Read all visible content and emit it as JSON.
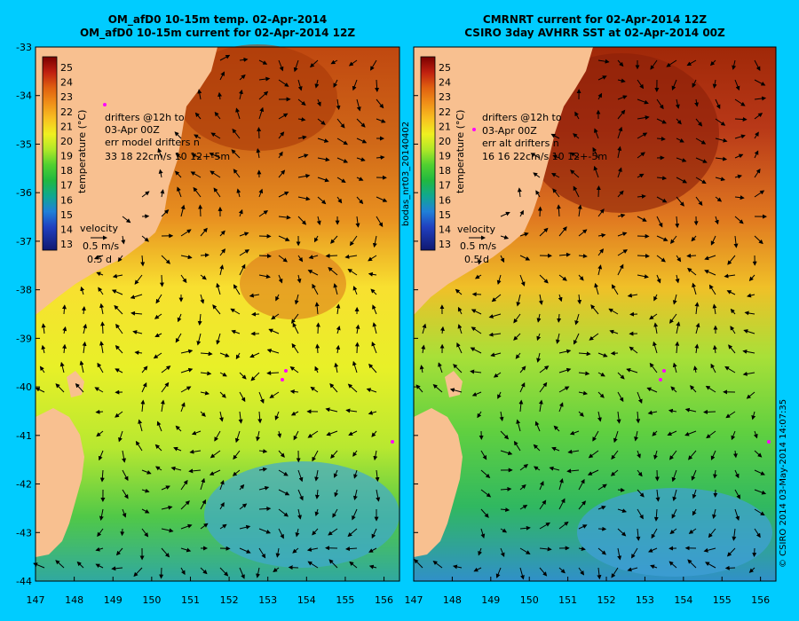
{
  "left_panel": {
    "title_line1": "OM_afD0 10-15m temp. 02-Apr-2014",
    "title_line2": "OM_afD0 10-15m current for 02-Apr-2014 12Z",
    "info_lines": [
      "drifters @12h to",
      "03-Apr 00Z",
      "err model drifters n",
      "33    18    22cm/s 10 12+-5m"
    ]
  },
  "right_panel": {
    "title_line1": "CMRNRT current for 02-Apr-2014 12Z",
    "title_line2": "CSIRO 3day AVHRR SST at 02-Apr-2014 00Z",
    "info_lines": [
      "drifters @12h to",
      "03-Apr 00Z",
      "err alt drifters n",
      "16 16 22cm/s 10 12+-5m"
    ]
  },
  "colorbar": {
    "label": "temperature (°C)",
    "ticks": [
      "25",
      "24",
      "23",
      "22",
      "21",
      "20",
      "19",
      "18",
      "17",
      "16",
      "15",
      "14",
      "13"
    ]
  },
  "velocity_key": {
    "label": "velocity",
    "speed": "0.5 m/s",
    "duration": "0.5 d"
  },
  "y_ticks": [
    "-33",
    "-34",
    "-35",
    "-36",
    "-37",
    "-38",
    "-39",
    "-40",
    "-41",
    "-42",
    "-43",
    "-44"
  ],
  "x_ticks": [
    "147",
    "148",
    "149",
    "150",
    "151",
    "152",
    "153",
    "154",
    "155",
    "156"
  ],
  "side_label_left": "bodas_nrt03_20140402",
  "side_label_right": "© CSIRO 2014   03-May-2014 14:07:35",
  "colors": {
    "background": "#00ccff",
    "land": "#f8c090"
  }
}
